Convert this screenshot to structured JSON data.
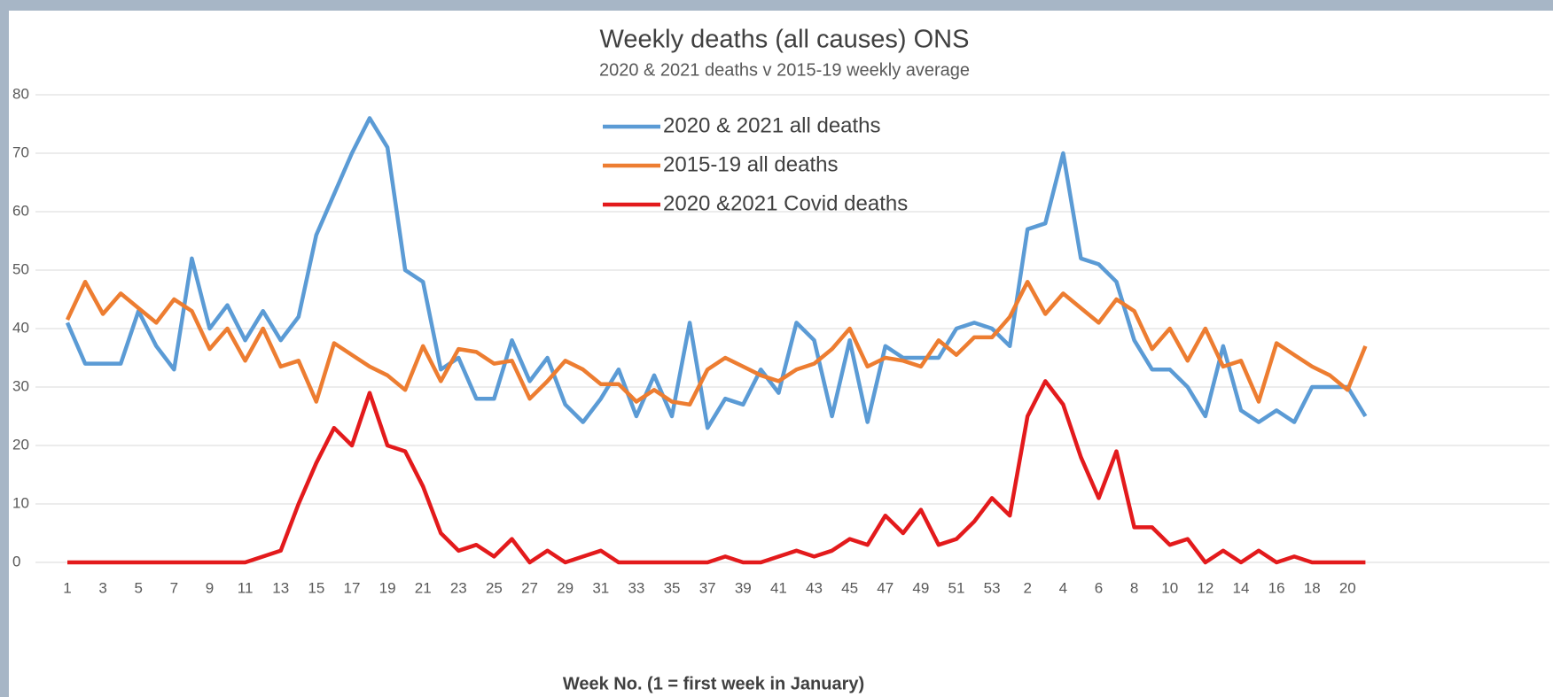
{
  "chart_data": {
    "type": "line",
    "title": "Weekly  deaths (all causes) ONS",
    "subtitle": "2020 & 2021 deaths v 2015-19 weekly average",
    "x_label": "Week No. (1 = first week in January)",
    "categories": [
      "1",
      null,
      "3",
      null,
      "5",
      null,
      "7",
      null,
      "9",
      null,
      "11",
      null,
      "13",
      null,
      "15",
      null,
      "17",
      null,
      "19",
      null,
      "21",
      null,
      "23",
      null,
      "25",
      null,
      "27",
      null,
      "29",
      null,
      "31",
      null,
      "33",
      null,
      "35",
      null,
      "37",
      null,
      "39",
      null,
      "41",
      null,
      "43",
      null,
      "45",
      null,
      "47",
      null,
      "49",
      null,
      "51",
      null,
      "53",
      null,
      "2",
      null,
      "4",
      null,
      "6",
      null,
      "8",
      null,
      "10",
      null,
      "12",
      null,
      "14",
      null,
      "16",
      null,
      "18",
      null,
      "20",
      null
    ],
    "ylim": [
      0,
      80
    ],
    "yticks": [
      0,
      10,
      20,
      30,
      40,
      50,
      60,
      70,
      80
    ],
    "grid": true,
    "legend": "top",
    "series": [
      {
        "name": "2020 & 2021 all deaths",
        "color": "#5b9bd5",
        "values": [
          41,
          34,
          34,
          34,
          43,
          37,
          33,
          52,
          40,
          44,
          38,
          43,
          38,
          42,
          56,
          63,
          70,
          76,
          71,
          50,
          48,
          33,
          35,
          28,
          28,
          38,
          31,
          35,
          27,
          24,
          28,
          33,
          25,
          32,
          25,
          41,
          23,
          28,
          27,
          33,
          29,
          41,
          38,
          25,
          38,
          24,
          37,
          35,
          35,
          35,
          40,
          41,
          40,
          37,
          57,
          58,
          70,
          52,
          51,
          48,
          38,
          33,
          33,
          30,
          25,
          37,
          26,
          24,
          26,
          24,
          30,
          30,
          30,
          25
        ]
      },
      {
        "name": "2015-19 all deaths",
        "color": "#ed7d31",
        "values": [
          41.5,
          48,
          42.5,
          46,
          43.5,
          41,
          45,
          43,
          36.5,
          40,
          34.5,
          40,
          33.5,
          34.5,
          27.5,
          37.5,
          35.5,
          33.5,
          32,
          29.5,
          37,
          31,
          36.5,
          36,
          34,
          34.5,
          28,
          31,
          34.5,
          33,
          30.5,
          30.5,
          27.5,
          29.5,
          27.5,
          27,
          33,
          35,
          33.5,
          32,
          31,
          33,
          34,
          36.5,
          40,
          33.5,
          35,
          34.5,
          33.5,
          38,
          35.5,
          38.5,
          38.5,
          42,
          48,
          42.5,
          46,
          43.5,
          41,
          45,
          43,
          36.5,
          40,
          34.5,
          40,
          33.5,
          34.5,
          27.5,
          37.5,
          35.5,
          33.5,
          32,
          29.5,
          37
        ]
      },
      {
        "name": "2020 &2021 Covid deaths",
        "color": "#e31a1c",
        "values": [
          0,
          0,
          0,
          0,
          0,
          0,
          0,
          0,
          0,
          0,
          0,
          1,
          2,
          10,
          17,
          23,
          20,
          29,
          20,
          19,
          13,
          5,
          2,
          3,
          1,
          4,
          0,
          2,
          0,
          1,
          2,
          0,
          0,
          0,
          0,
          0,
          0,
          1,
          0,
          0,
          1,
          2,
          1,
          2,
          4,
          3,
          8,
          5,
          9,
          3,
          4,
          7,
          11,
          8,
          25,
          31,
          27,
          18,
          11,
          19,
          6,
          6,
          3,
          4,
          0,
          2,
          0,
          2,
          0,
          1,
          0,
          0,
          0,
          0
        ]
      }
    ]
  }
}
